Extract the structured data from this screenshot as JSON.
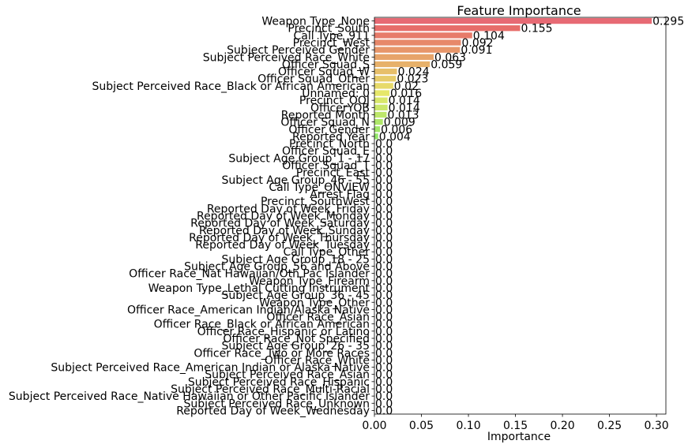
{
  "chart_data": {
    "type": "bar",
    "orientation": "horizontal",
    "title": "Feature Importance",
    "xlabel": "Importance",
    "ylabel": "",
    "xlim": [
      0,
      0.31
    ],
    "xticks": [
      "0.00",
      "0.05",
      "0.10",
      "0.15",
      "0.20",
      "0.25",
      "0.30"
    ],
    "grid": false,
    "legend": "none",
    "palette": "husl gradient (pink → orange → olive → green → teal → blue → purple)",
    "categories": [
      "Weapon Type_None",
      "Precinct_South",
      "Call Type_911",
      "Precinct_West",
      "Subject Perceived Gender",
      "Subject Perceived Race_White",
      "Officer Squad_S",
      "Officer Squad_W",
      "Officer Squad_Other",
      "Subject Perceived Race_Black or African American",
      "Unnamed: 0",
      "Precinct_OOJ",
      "OfficerYOB",
      "Reported Month",
      "Officer Squad_N",
      "Officer Gender",
      "Reported Year",
      "Precinct_North",
      "Officer Squad_E",
      "Subject Age Group_1 - 17",
      "Officer Squad_T",
      "Precinct_East",
      "Subject Age Group_46 - 55",
      "Call Type_ONVIEW",
      "Arrest Flag",
      "Precinct_SouthWest",
      "Reported Day of Week_Friday",
      "Reported Day of Week_Monday",
      "Reported Day of Week_Saturday",
      "Reported Day of Week_Sunday",
      "Reported Day of Week_Thursday",
      "Reported Day of Week_Tuesday",
      "Call Type_Other",
      "Subject Age Group_18 - 25",
      "Subject Age Group_56 and Above",
      "Officer Race_Nat Hawaiian/Oth Pac Islander",
      "Weapon Type_Firearm",
      "Weapon Type_Lethal Cutting Instrument",
      "Subject Age Group_36 - 45",
      "Weapon Type_Other",
      "Officer Race_American Indian/Alaska Native",
      "Officer Race_Asian",
      "Officer Race_Black or African American",
      "Officer Race_Hispanic or Latino",
      "Officer Race_Not Specified",
      "Subject Age Group_26 - 35",
      "Officer Race_Two or More Races",
      "Officer Race_White",
      "Subject Perceived Race_American Indian or Alaska Native",
      "Subject Perceived Race_Asian",
      "Subject Perceived Race_Hispanic",
      "Subject Perceived Race_Multi-Racial",
      "Subject Perceived Race_Native Hawaiian or Other Pacific Islander",
      "Subject Perceived Race_Unknown",
      "Reported Day of Week_Wednesday"
    ],
    "values": [
      0.295,
      0.155,
      0.104,
      0.092,
      0.091,
      0.063,
      0.059,
      0.024,
      0.023,
      0.02,
      0.016,
      0.014,
      0.014,
      0.013,
      0.009,
      0.006,
      0.004,
      0.0,
      0.0,
      0.0,
      0.0,
      0.0,
      0.0,
      0.0,
      0.0,
      0.0,
      0.0,
      0.0,
      0.0,
      0.0,
      0.0,
      0.0,
      0.0,
      0.0,
      0.0,
      0.0,
      0.0,
      0.0,
      0.0,
      0.0,
      0.0,
      0.0,
      0.0,
      0.0,
      0.0,
      0.0,
      0.0,
      0.0,
      0.0,
      0.0,
      0.0,
      0.0,
      0.0,
      0.0,
      0.0
    ],
    "value_labels": [
      "0.295",
      "0.155",
      "0.104",
      "0.092",
      "0.091",
      "0.063",
      "0.059",
      "0.024",
      "0.023",
      "0.02",
      "0.016",
      "0.014",
      "0.014",
      "0.013",
      "0.009",
      "0.006",
      "0.004",
      "0.0",
      "0.0",
      "0.0",
      "0.0",
      "0.0",
      "0.0",
      "0.0",
      "0.0",
      "0.0",
      "0.0",
      "0.0",
      "0.0",
      "0.0",
      "0.0",
      "0.0",
      "0.0",
      "0.0",
      "0.0",
      "0.0",
      "0.0",
      "0.0",
      "0.0",
      "0.0",
      "0.0",
      "0.0",
      "0.0",
      "0.0",
      "0.0",
      "0.0",
      "0.0",
      "0.0",
      "0.0",
      "0.0",
      "0.0",
      "0.0",
      "0.0",
      "0.0",
      "0.0"
    ]
  }
}
